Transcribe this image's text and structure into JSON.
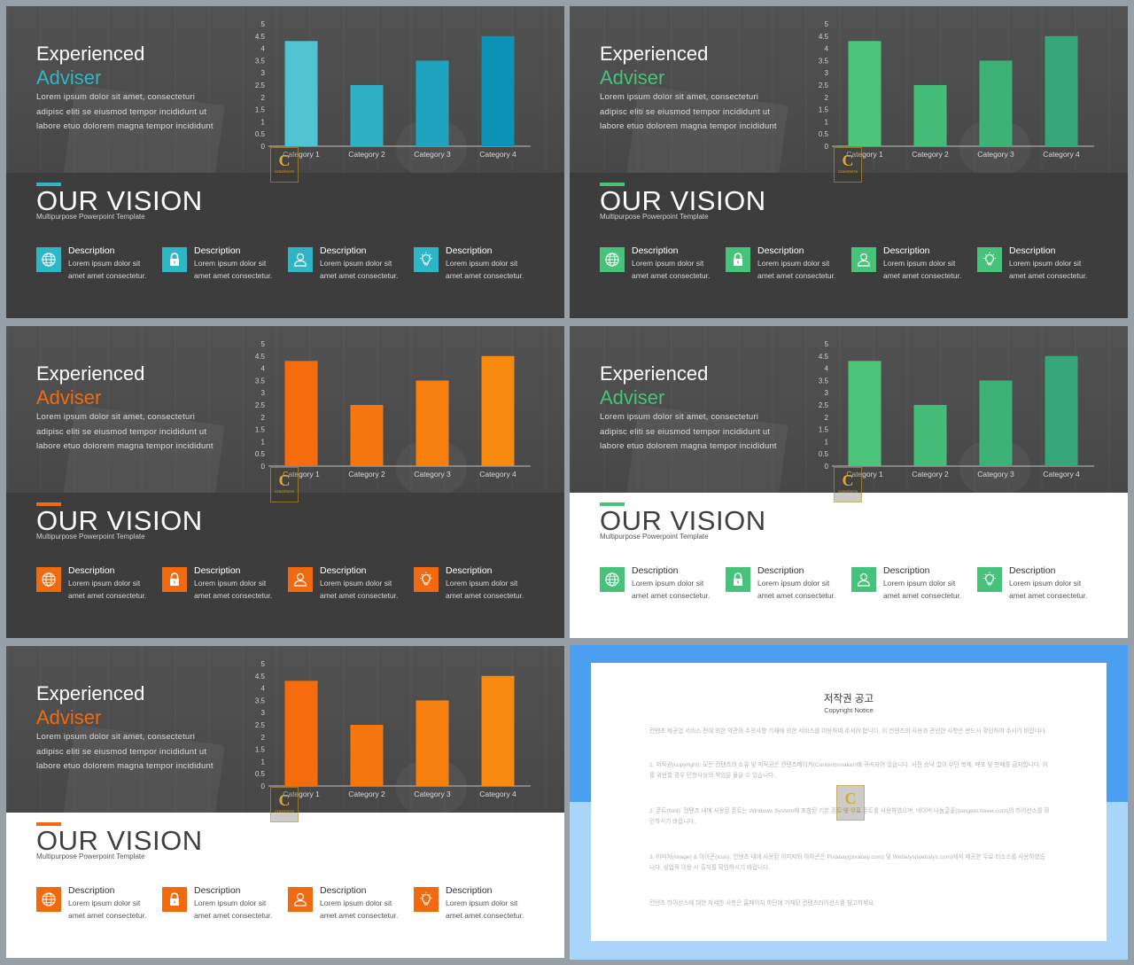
{
  "slides": [
    {
      "id": "s1",
      "theme": "dark",
      "accent": "#2fb6c6",
      "bar_colors": [
        "#4fc3cf",
        "#2fb1c4",
        "#1fa4bf",
        "#0a93b6"
      ],
      "title_line1": "Experienced",
      "title_line2": "Adviser",
      "body": "Lorem ipsum dolor sit amet, consecteturi adipisc eliti se eiusmod tempor incididunt ut labore etuo dolorem magna tempor incididunt",
      "vision_title": "OUR VISION",
      "vision_subtitle": "Multipurpose Powerpoint Template",
      "chart_data": {
        "type": "bar",
        "categories": [
          "Category 1",
          "Category 2",
          "Category 3",
          "Category 4"
        ],
        "series": [
          {
            "values": [
              4.3,
              2.5,
              3.5,
              4.5
            ]
          }
        ],
        "y_ticks": [
          "0",
          "0.5",
          "1",
          "1.5",
          "2",
          "2.5",
          "3",
          "3.5",
          "4",
          "4.5",
          "5"
        ],
        "ylim": [
          0,
          5
        ]
      },
      "descriptions": [
        {
          "icon": "globe-icon",
          "title": "Description",
          "line1": "Lorem ipsum dolor sit",
          "line2": "amet amet consectetur."
        },
        {
          "icon": "lock-icon",
          "title": "Description",
          "line1": "Lorem ipsum dolor sit",
          "line2": "amet amet consectetur."
        },
        {
          "icon": "user-icon",
          "title": "Description",
          "line1": "Lorem ipsum dolor sit",
          "line2": "amet amet consectetur."
        },
        {
          "icon": "lightbulb-icon",
          "title": "Description",
          "line1": "Lorem ipsum dolor sit",
          "line2": "amet amet consectetur."
        }
      ]
    },
    {
      "id": "s2",
      "theme": "dark",
      "accent": "#46c27a",
      "bar_colors": [
        "#4cc57a",
        "#44bd78",
        "#3db277",
        "#36a77b"
      ],
      "title_line1": "Experienced",
      "title_line2": "Adviser",
      "body": "Lorem ipsum dolor sit amet, consecteturi adipisc eliti se eiusmod tempor incididunt ut labore etuo dolorem magna tempor incididunt",
      "vision_title": "OUR VISION",
      "vision_subtitle": "Multipurpose Powerpoint Template",
      "chart_data": {
        "type": "bar",
        "categories": [
          "Category 1",
          "Category 2",
          "Category 3",
          "Category 4"
        ],
        "series": [
          {
            "values": [
              4.3,
              2.5,
              3.5,
              4.5
            ]
          }
        ],
        "y_ticks": [
          "0",
          "0.5",
          "1",
          "1.5",
          "2",
          "2.5",
          "3",
          "3.5",
          "4",
          "4.5",
          "5"
        ],
        "ylim": [
          0,
          5
        ]
      },
      "descriptions": [
        {
          "icon": "globe-icon",
          "title": "Description",
          "line1": "Lorem ipsum dolor sit",
          "line2": "amet amet consectetur."
        },
        {
          "icon": "lock-icon",
          "title": "Description",
          "line1": "Lorem ipsum dolor sit",
          "line2": "amet amet consectetur."
        },
        {
          "icon": "user-icon",
          "title": "Description",
          "line1": "Lorem ipsum dolor sit",
          "line2": "amet amet consectetur."
        },
        {
          "icon": "lightbulb-icon",
          "title": "Description",
          "line1": "Lorem ipsum dolor sit",
          "line2": "amet amet consectetur."
        }
      ]
    },
    {
      "id": "s3",
      "theme": "dark",
      "accent": "#f26a0f",
      "bar_colors": [
        "#f46c0c",
        "#f5760d",
        "#f67f0e",
        "#f7890f"
      ],
      "title_line1": "Experienced",
      "title_line2": "Adviser",
      "body": "Lorem ipsum dolor sit amet, consecteturi adipisc eliti se eiusmod tempor incididunt ut labore etuo dolorem magna tempor incididunt",
      "vision_title": "OUR VISION",
      "vision_subtitle": "Multipurpose Powerpoint Template",
      "chart_data": {
        "type": "bar",
        "categories": [
          "Category 1",
          "Category 2",
          "Category 3",
          "Category 4"
        ],
        "series": [
          {
            "values": [
              4.3,
              2.5,
              3.5,
              4.5
            ]
          }
        ],
        "y_ticks": [
          "0",
          "0.5",
          "1",
          "1.5",
          "2",
          "2.5",
          "3",
          "3.5",
          "4",
          "4.5",
          "5"
        ],
        "ylim": [
          0,
          5
        ]
      },
      "descriptions": [
        {
          "icon": "globe-icon",
          "title": "Description",
          "line1": "Lorem ipsum dolor sit",
          "line2": "amet amet consectetur."
        },
        {
          "icon": "lock-icon",
          "title": "Description",
          "line1": "Lorem ipsum dolor sit",
          "line2": "amet amet consectetur."
        },
        {
          "icon": "user-icon",
          "title": "Description",
          "line1": "Lorem ipsum dolor sit",
          "line2": "amet amet consectetur."
        },
        {
          "icon": "lightbulb-icon",
          "title": "Description",
          "line1": "Lorem ipsum dolor sit",
          "line2": "amet amet consectetur."
        }
      ]
    },
    {
      "id": "s4",
      "theme": "light",
      "accent": "#46c27a",
      "bar_colors": [
        "#4cc57a",
        "#44bd78",
        "#3db277",
        "#36a77b"
      ],
      "title_line1": "Experienced",
      "title_line2": "Adviser",
      "body": "Lorem ipsum dolor sit amet, consecteturi adipisc eliti se eiusmod tempor incididunt ut labore etuo dolorem magna tempor incididunt",
      "vision_title": "OUR VISION",
      "vision_subtitle": "Multipurpose Powerpoint Template",
      "chart_data": {
        "type": "bar",
        "categories": [
          "Category 1",
          "Category 2",
          "Category 3",
          "Category 4"
        ],
        "series": [
          {
            "values": [
              4.3,
              2.5,
              3.5,
              4.5
            ]
          }
        ],
        "y_ticks": [
          "0",
          "0.5",
          "1",
          "1.5",
          "2",
          "2.5",
          "3",
          "3.5",
          "4",
          "4.5",
          "5"
        ],
        "ylim": [
          0,
          5
        ]
      },
      "descriptions": [
        {
          "icon": "globe-icon",
          "title": "Description",
          "line1": "Lorem ipsum dolor sit",
          "line2": "amet amet consectetur."
        },
        {
          "icon": "lock-icon",
          "title": "Description",
          "line1": "Lorem ipsum dolor sit",
          "line2": "amet amet consectetur."
        },
        {
          "icon": "user-icon",
          "title": "Description",
          "line1": "Lorem ipsum dolor sit",
          "line2": "amet amet consectetur."
        },
        {
          "icon": "lightbulb-icon",
          "title": "Description",
          "line1": "Lorem ipsum dolor sit",
          "line2": "amet amet consectetur."
        }
      ]
    },
    {
      "id": "s5",
      "theme": "light",
      "accent": "#f26a0f",
      "bar_colors": [
        "#f46c0c",
        "#f5760d",
        "#f67f0e",
        "#f7890f"
      ],
      "title_line1": "Experienced",
      "title_line2": "Adviser",
      "body": "Lorem ipsum dolor sit amet, consecteturi adipisc eliti se eiusmod tempor incididunt ut labore etuo dolorem magna tempor incididunt",
      "vision_title": "OUR VISION",
      "vision_subtitle": "Multipurpose Powerpoint Template",
      "chart_data": {
        "type": "bar",
        "categories": [
          "Category 1",
          "Category 2",
          "Category 3",
          "Category 4"
        ],
        "series": [
          {
            "values": [
              4.3,
              2.5,
              3.5,
              4.5
            ]
          }
        ],
        "y_ticks": [
          "0",
          "0.5",
          "1",
          "1.5",
          "2",
          "2.5",
          "3",
          "3.5",
          "4",
          "4.5",
          "5"
        ],
        "ylim": [
          0,
          5
        ]
      },
      "descriptions": [
        {
          "icon": "globe-icon",
          "title": "Description",
          "line1": "Lorem ipsum dolor sit",
          "line2": "amet amet consectetur."
        },
        {
          "icon": "lock-icon",
          "title": "Description",
          "line1": "Lorem ipsum dolor sit",
          "line2": "amet amet consectetur."
        },
        {
          "icon": "user-icon",
          "title": "Description",
          "line1": "Lorem ipsum dolor sit",
          "line2": "amet amet consectetur."
        },
        {
          "icon": "lightbulb-icon",
          "title": "Description",
          "line1": "Lorem ipsum dolor sit",
          "line2": "amet amet consectetur."
        }
      ]
    }
  ],
  "logo": {
    "letter": "C",
    "text": "CONTENTS"
  },
  "notice": {
    "title": "저작권 공고",
    "subtitle": "Copyright Notice",
    "paragraphs": [
      "컨텐츠 제공업 서비스 전에 의한 약관의 주의사항 기재에 의한 서비스를 이용하여 주셔야 합니다. 이 컨텐츠의 사용과 관련한 사항은 반드시 확인하여 주시기 바랍니다.",
      "1. 저작권(copyright): 모든 컨텐츠의 소유 및 저작권은 컨텐츠메이커(Contentsmaker)에 귀속되어 있습니다. 사전 승낙 없이 무단 복제, 배포 및 판매를 금지합니다. 이를 위반할 경우 민형사상의 책임을 물을 수 있습니다.",
      "2. 폰트(font): 컨텐츠 내에 사용된 폰트는 Windows System에 포함된 기본 폰트 및 무료 폰트를 사용하였으며, 네이버 나눔글꼴(hangeul.naver.com)의 라이선스를 확인하시기 바랍니다.",
      "3. 이미지(image) & 아이콘(icon): 컨텐츠 내에 사용된 이미지와 아이콘은 Pixabay(pixabay.com) 및 Webalys(webalys.com)에서 제공한 무료 리소스를 사용하였습니다. 상업적 이용 시 출처를 확인하시기 바랍니다.",
      "컨텐츠 라이선스에 대한 자세한 사항은 홈페이지 하단에 기재된 컨텐츠라이선스를 참고하세요."
    ]
  }
}
